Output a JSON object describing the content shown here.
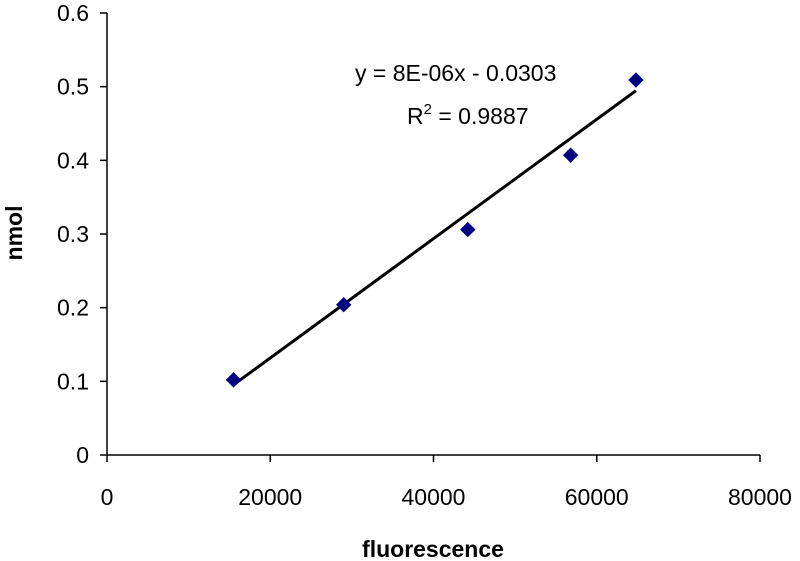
{
  "chart_data": {
    "type": "scatter",
    "title": "",
    "xlabel": "fluorescence",
    "ylabel": "nmol",
    "xlim": [
      0,
      80000
    ],
    "ylim": [
      0,
      0.6
    ],
    "x_ticks": [
      0,
      20000,
      40000,
      60000,
      80000
    ],
    "y_ticks": [
      0,
      0.1,
      0.2,
      0.3,
      0.4,
      0.5,
      0.6
    ],
    "x_tick_labels": [
      "0",
      "20000",
      "40000",
      "60000",
      "80000"
    ],
    "y_tick_labels": [
      "0",
      "0.1",
      "0.2",
      "0.3",
      "0.4",
      "0.5",
      "0.6"
    ],
    "grid": false,
    "legend": "none",
    "series": [
      {
        "marker": "diamond",
        "color": "#000080",
        "points": [
          {
            "x": 15500,
            "y": 0.102
          },
          {
            "x": 29000,
            "y": 0.204
          },
          {
            "x": 44200,
            "y": 0.306
          },
          {
            "x": 56800,
            "y": 0.407
          },
          {
            "x": 64800,
            "y": 0.509
          }
        ]
      }
    ],
    "trendline": {
      "type": "linear",
      "color": "#000000",
      "slope": 8.1e-06,
      "intercept": -0.0303,
      "x_range": [
        15500,
        64800
      ],
      "equation_label": "y = 8E-06x - 0.0303",
      "r2_base": "R",
      "r2_sup": "2",
      "r2_value": " = 0.9887"
    }
  }
}
